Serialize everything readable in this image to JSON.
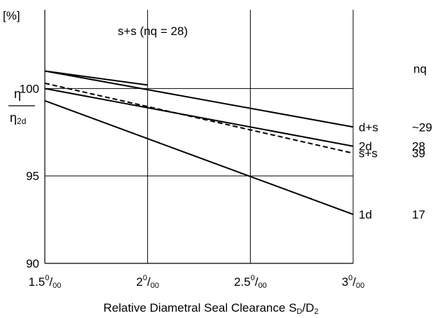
{
  "chart_data": {
    "type": "line",
    "title": "",
    "xlabel": {
      "main": "Relative Diametral Seal Clearance S",
      "sub1": "D",
      "mid": "/D",
      "sub2": "2"
    },
    "ylabel": {
      "unit": "[%]",
      "numerator": "η",
      "denominator_base": "η",
      "denominator_sub": "2d"
    },
    "xlim": [
      1.5,
      3.0
    ],
    "ylim": [
      90,
      104.5
    ],
    "grid": true,
    "x_ticks": [
      {
        "value": 1.5,
        "label": "1.5",
        "sup": "0",
        "suffix": "/",
        "sub": "00"
      },
      {
        "value": 2.0,
        "label": "2",
        "sup": "0",
        "suffix": "/",
        "sub": "00"
      },
      {
        "value": 2.5,
        "label": "2.5",
        "sup": "0",
        "suffix": "/",
        "sub": "00"
      },
      {
        "value": 3.0,
        "label": "3",
        "sup": "0",
        "suffix": "/",
        "sub": "00"
      }
    ],
    "y_ticks": [
      {
        "value": 90,
        "label": "90"
      },
      {
        "value": 95,
        "label": "95"
      },
      {
        "value": 100,
        "label": "100"
      }
    ],
    "nq_header": "nq",
    "series": [
      {
        "name": "d+s",
        "nq": "~29",
        "style": "solid",
        "x": [
          1.5,
          3.0
        ],
        "y": [
          101.0,
          97.8
        ]
      },
      {
        "name": "2d",
        "nq": "28",
        "style": "solid",
        "x": [
          1.5,
          3.0
        ],
        "y": [
          100.0,
          96.7
        ]
      },
      {
        "name": "s+s",
        "nq": "39",
        "style": "dashed",
        "x": [
          1.5,
          3.0
        ],
        "y": [
          100.3,
          96.3
        ]
      },
      {
        "name": "1d",
        "nq": "17",
        "style": "solid",
        "x": [
          1.5,
          3.0
        ],
        "y": [
          99.3,
          92.8
        ]
      }
    ],
    "annotation_series": {
      "label": "s+s (nq = 28)",
      "style": "solid",
      "x": [
        1.5,
        2.0
      ],
      "y": [
        101.0,
        100.2
      ]
    }
  }
}
